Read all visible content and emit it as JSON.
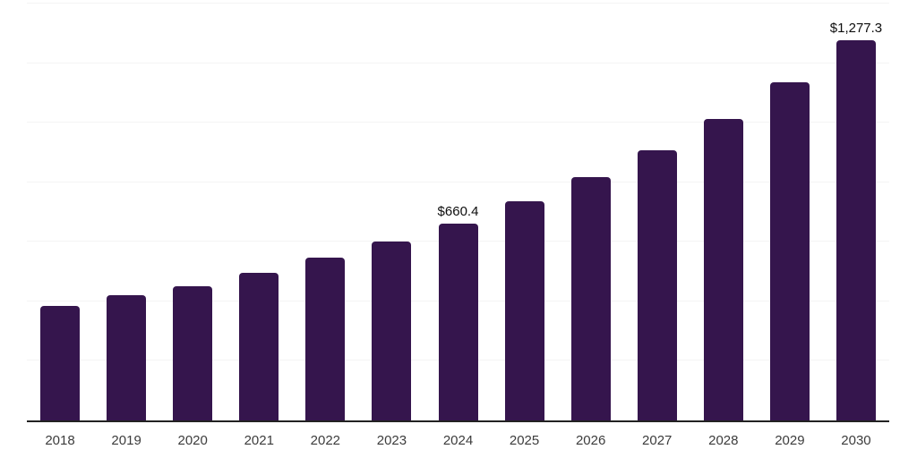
{
  "chart_data": {
    "type": "bar",
    "title": "",
    "xlabel": "",
    "ylabel": "",
    "categories": [
      "2018",
      "2019",
      "2020",
      "2021",
      "2022",
      "2023",
      "2024",
      "2025",
      "2026",
      "2027",
      "2028",
      "2029",
      "2030"
    ],
    "values": [
      385,
      420,
      452,
      497,
      547,
      601,
      660.4,
      735,
      817,
      908,
      1013,
      1137,
      1277.3
    ],
    "data_labels": [
      "",
      "",
      "",
      "",
      "",
      "",
      "$660.4",
      "",
      "",
      "",
      "",
      "",
      "$1,277.3"
    ],
    "ylim": [
      0,
      1400
    ],
    "gridline_step": 200,
    "grid": "horizontal",
    "legend": "none",
    "y_axis_tick_labels": "none",
    "bar_color": "#35154d",
    "background_color": "#ffffff",
    "axis_line_color": "#222222",
    "gridline_color": "#f4f4f4",
    "tick_label_color": "#3c3c3c",
    "data_label_color": "#0d0d0d"
  }
}
